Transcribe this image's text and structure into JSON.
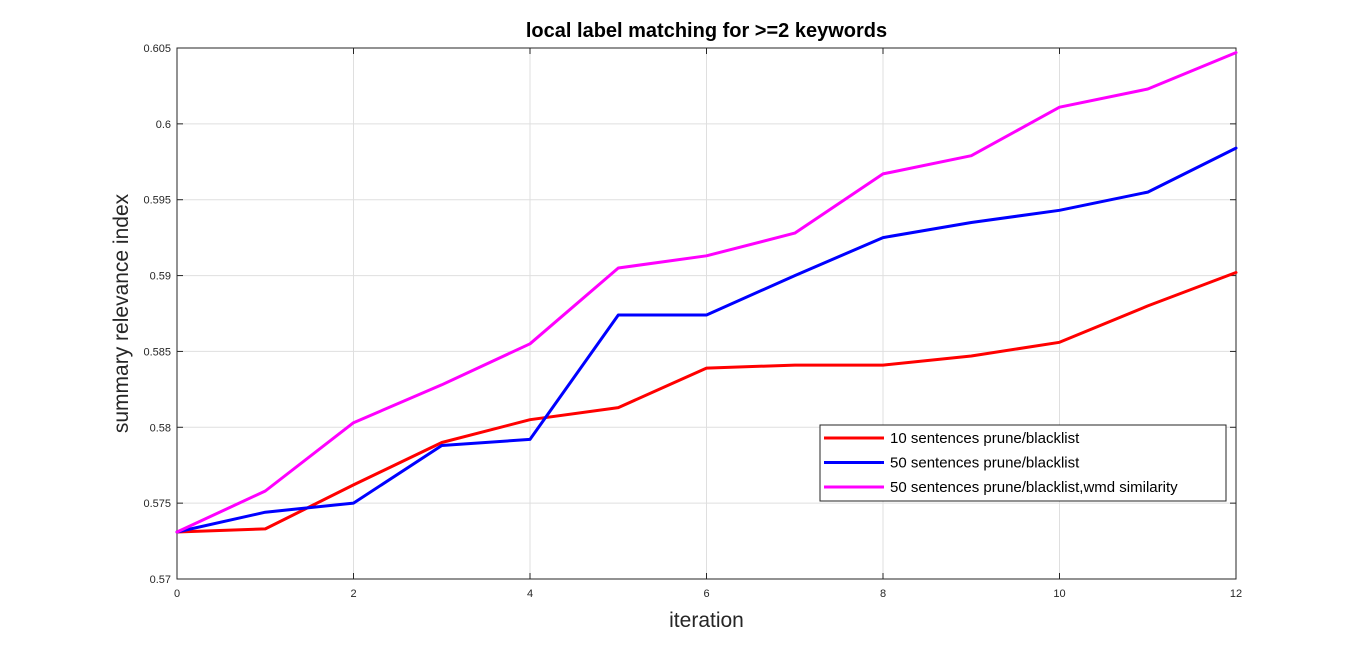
{
  "chart_data": {
    "type": "line",
    "title": "local label matching for >=2 keywords",
    "xlabel": "iteration",
    "ylabel": "summary relevance index",
    "xlim": [
      0,
      12
    ],
    "ylim": [
      0.57,
      0.605
    ],
    "xticks": [
      0,
      2,
      4,
      6,
      8,
      10,
      12
    ],
    "xtick_labels": [
      "0",
      "2",
      "4",
      "6",
      "8",
      "10",
      "12"
    ],
    "yticks": [
      0.57,
      0.575,
      0.58,
      0.585,
      0.59,
      0.595,
      0.6,
      0.605
    ],
    "ytick_labels": [
      "0.57",
      "0.575",
      "0.58",
      "0.585",
      "0.59",
      "0.595",
      "0.6",
      "0.605"
    ],
    "grid": true,
    "legend_position": "lower-right",
    "x": [
      0,
      1,
      2,
      3,
      4,
      5,
      6,
      7,
      8,
      9,
      10,
      11,
      12
    ],
    "series": [
      {
        "name": "10 sentences prune/blacklist",
        "color": "#ff0000",
        "values": [
          0.5731,
          0.5733,
          0.5762,
          0.579,
          0.5805,
          0.5813,
          0.5839,
          0.5841,
          0.5841,
          0.5847,
          0.5856,
          0.588,
          0.5902
        ]
      },
      {
        "name": "50 sentences prune/blacklist",
        "color": "#0000ff",
        "values": [
          0.5731,
          0.5744,
          0.575,
          0.5788,
          0.5792,
          0.5874,
          0.5874,
          0.59,
          0.5925,
          0.5935,
          0.5943,
          0.5955,
          0.5984
        ]
      },
      {
        "name": "50 sentences prune/blacklist,wmd similarity",
        "color": "#ff00ff",
        "values": [
          0.5731,
          0.5758,
          0.5803,
          0.5828,
          0.5855,
          0.5905,
          0.5913,
          0.5928,
          0.5967,
          0.5979,
          0.6011,
          0.6023,
          0.6047
        ]
      }
    ]
  }
}
